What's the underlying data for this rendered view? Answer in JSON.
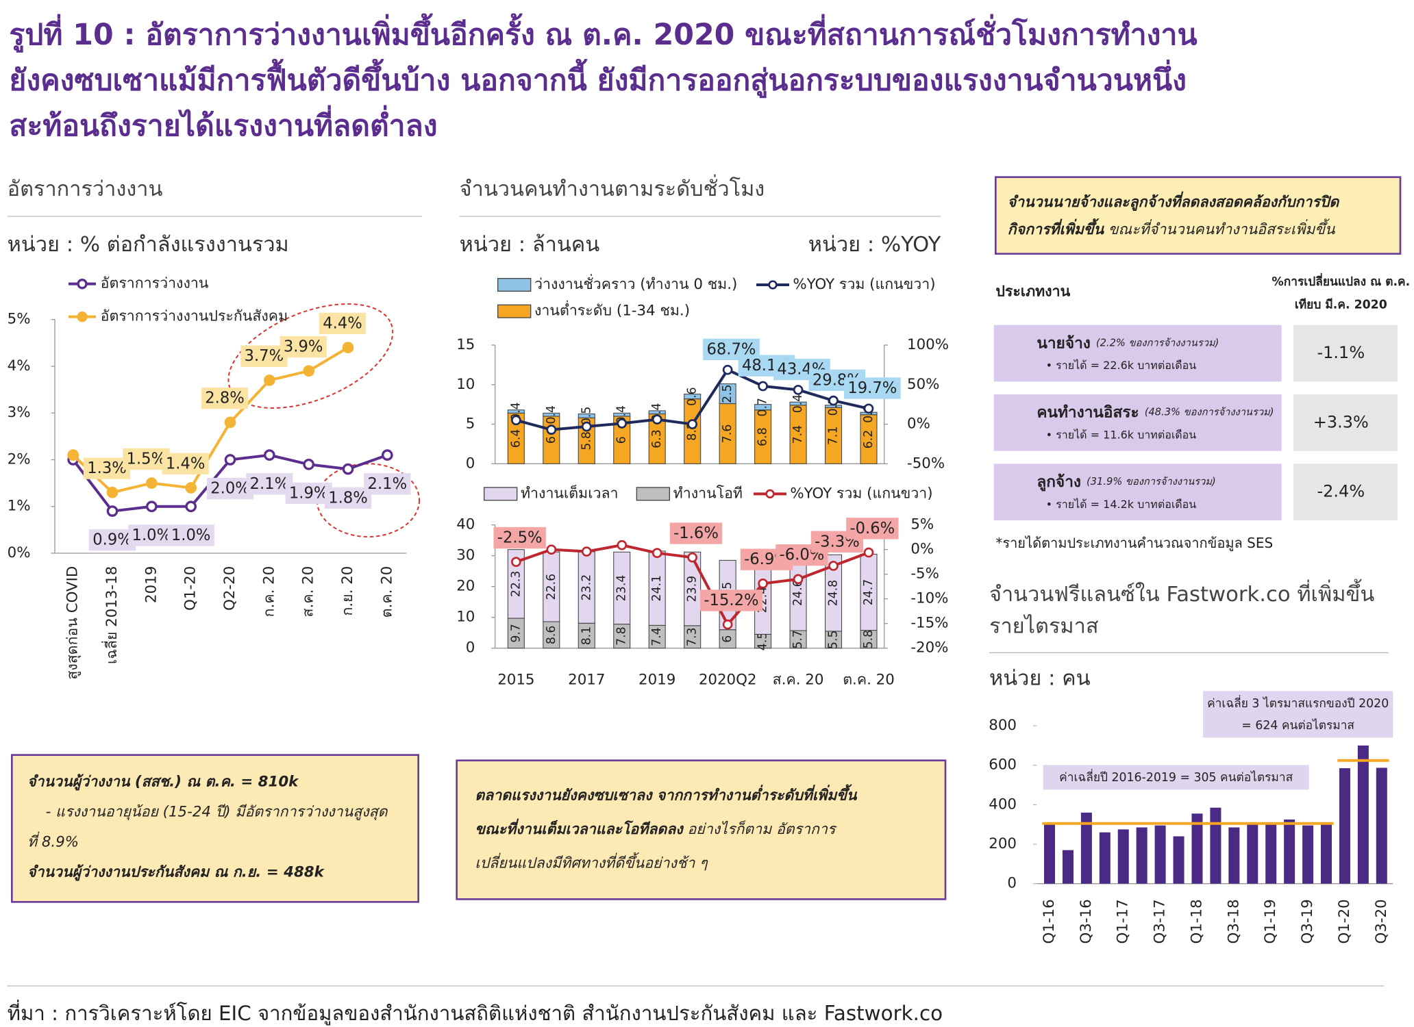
{
  "header": {
    "title_lines": [
      "รูปที่ 10 : อัตราการว่างงานเพิ่มขึ้นอีกครั้ง ณ ต.ค. 2020 ขณะที่สถานการณ์ชั่วโมงการทำงาน",
      "ยังคงซบเซาแม้มีการฟื้นตัวดีขึ้นบ้าง นอกจากนี้ ยังมีการออกสู่นอกระบบของแรงงานจำนวนหนึ่ง",
      "สะท้อนถึงรายได้แรงงานที่ลดต่ำลง"
    ]
  },
  "chart_data": [
    {
      "type": "line",
      "title": "อัตราการว่างงาน",
      "y_label": "หน่วย : % ต่อกำลังแรงงานรวม",
      "categories": [
        "สูงสุดก่อน COVID",
        "เฉลี่ย 2013-18",
        "2019",
        "Q1-20",
        "Q2-20",
        "ก.ค. 20",
        "ส.ค. 20",
        "ก.ย. 20",
        "ต.ค. 20"
      ],
      "series": [
        {
          "name": "อัตราการว่างงาน",
          "color": "#5b2d8e",
          "values": [
            2.0,
            0.9,
            1.0,
            1.0,
            2.0,
            2.1,
            1.9,
            1.8,
            2.1
          ],
          "value_labels": [
            null,
            "0.9%",
            "1.0%",
            "1.0%",
            "2.0%",
            "2.1%",
            "1.9%",
            "1.8%",
            "2.1%"
          ]
        },
        {
          "name": "อัตราการว่างงานประกันสังคม",
          "color": "#f5b335",
          "values": [
            2.1,
            1.3,
            1.5,
            1.4,
            2.8,
            3.7,
            3.9,
            4.4,
            null
          ],
          "value_labels": [
            null,
            "1.3%",
            "1.5%",
            "1.4%",
            "2.8%",
            "3.7%",
            "3.9%",
            "4.4%",
            null
          ]
        }
      ],
      "ylim": [
        0,
        5
      ],
      "yticks": [
        {
          "value": 0,
          "label": "0%"
        },
        {
          "value": 1,
          "label": "1%"
        },
        {
          "value": 2,
          "label": "2%"
        },
        {
          "value": 3,
          "label": "3%"
        },
        {
          "value": 4,
          "label": "4%"
        },
        {
          "value": 5,
          "label": "5%"
        }
      ]
    },
    {
      "type": "stacked_bar_line",
      "title": "จำนวนคนทำงานตามระดับชั่วโมง",
      "y_label": "หน่วย : ล้านคน",
      "y2_label": "หน่วย : %YOY",
      "series": [
        {
          "name": "งานต่ำระดับ (1-34 ชม.)",
          "color": "#f5a623",
          "values": [
            6.4,
            6.0,
            5.8,
            6.0,
            6.3,
            8.2,
            7.6,
            6.8,
            7.4,
            7.1,
            6.2
          ]
        },
        {
          "name": "ว่างงานชั่วคราว (ทำงาน 0 ชม.)",
          "color": "#8fc3e8",
          "values": [
            0.4,
            0.4,
            0.5,
            0.4,
            0.4,
            0.6,
            2.5,
            0.7,
            0.4,
            0.3,
            0.3
          ]
        },
        {
          "name": "%YOY รวม (แกนขวา)",
          "color": "#1f2a5c",
          "axis": "y2",
          "values": [
            5,
            -7,
            -3,
            1,
            6,
            0,
            68.7,
            48.1,
            43.4,
            29.8,
            19.7
          ],
          "value_labels": [
            null,
            null,
            null,
            null,
            null,
            null,
            "68.7%",
            "48.1%",
            "43.4%",
            "29.8%",
            "19.7%"
          ]
        }
      ],
      "ylim": [
        0,
        15
      ],
      "yticks": [
        0,
        5,
        10,
        15
      ],
      "y2lim": [
        -50,
        100
      ],
      "y2ticks": [
        {
          "value": -50,
          "label": "-50%"
        },
        {
          "value": 0,
          "label": "0%"
        },
        {
          "value": 50,
          "label": "50%"
        },
        {
          "value": 100,
          "label": "100%"
        }
      ]
    },
    {
      "type": "stacked_bar_line",
      "categories": [
        "2015",
        null,
        "2017",
        null,
        "2019",
        null,
        "2020Q2",
        null,
        "ส.ค. 20",
        null,
        "ต.ค. 20"
      ],
      "series": [
        {
          "name": "ทำงานโอที",
          "color": "#bfbfbf",
          "values": [
            9.7,
            8.6,
            8.1,
            7.8,
            7.4,
            7.3,
            6.0,
            4.5,
            5.7,
            5.5,
            5.8
          ]
        },
        {
          "name": "ทำงานเต็มเวลา",
          "color": "#e3d7ef",
          "values": [
            22.3,
            22.6,
            23.2,
            23.4,
            24.1,
            23.9,
            22.5,
            22.4,
            24.6,
            24.8,
            24.7
          ]
        },
        {
          "name": "%YOY รวม (แกนขวา)",
          "color": "#c0262d",
          "axis": "y2",
          "values": [
            -2.5,
            0,
            -0.4,
            0.9,
            -0.7,
            -1.6,
            -15.2,
            -6.9,
            -6.0,
            -3.3,
            -0.6
          ],
          "value_labels": [
            "-2.5%",
            null,
            null,
            null,
            null,
            "-1.6%",
            "-15.2%",
            "-6.9%",
            "-6.0%",
            "-3.3%",
            "-0.6%"
          ]
        }
      ],
      "ylim": [
        0,
        40
      ],
      "yticks": [
        0,
        10,
        20,
        30,
        40
      ],
      "y2lim": [
        -20,
        5
      ],
      "y2ticks": [
        {
          "value": 5,
          "label": "5%"
        },
        {
          "value": 0,
          "label": "0%"
        },
        {
          "value": -5,
          "label": "-5%"
        },
        {
          "value": -10,
          "label": "-10%"
        },
        {
          "value": -15,
          "label": "-15%"
        },
        {
          "value": -20,
          "label": "-20%"
        }
      ]
    },
    {
      "type": "bar",
      "title_lines": [
        "จำนวนฟรีแลนซ์ใน Fastwork.co ที่เพิ่มขึ้น",
        "รายไตรมาส"
      ],
      "y_label": "หน่วย : คน",
      "categories": [
        "Q1-16",
        null,
        "Q3-16",
        null,
        "Q1-17",
        null,
        "Q3-17",
        null,
        "Q1-18",
        null,
        "Q3-18",
        null,
        "Q1-19",
        null,
        "Q3-19",
        null,
        "Q1-20",
        null,
        "Q3-20"
      ],
      "values": [
        300,
        170,
        360,
        260,
        275,
        285,
        295,
        240,
        355,
        385,
        285,
        310,
        305,
        325,
        295,
        310,
        585,
        700,
        587
      ],
      "color": "#4b2a85",
      "ylim": [
        0,
        800
      ],
      "yticks": [
        0,
        200,
        400,
        600,
        800
      ],
      "reference_lines": [
        {
          "value": 305,
          "color": "#f5a623",
          "label_lines": [
            "ค่าเฉลี่ยปี 2016-2019 = 305 คนต่อไตรมาส"
          ]
        },
        {
          "value": 624,
          "color": "#f5a623",
          "label_lines": [
            "ค่าเฉลี่ย 3 ไตรมาสแรกของปี 2020",
            "= 624 คนต่อไตรมาส"
          ]
        }
      ]
    }
  ],
  "highlight_box": {
    "lines": [
      {
        "bold": "จำนวนนายจ้างและลูกจ้างที่ลดลงสอดคล้องกับการปิด"
      },
      {
        "bold": "กิจการที่เพิ่มขึ้น",
        "text": " ขณะที่จำนวนคนทำงานอิสระเพิ่มขึ้น"
      }
    ]
  },
  "employment_table": {
    "header_type": "ประเภทงาน",
    "header_change_lines": [
      "%การเปลี่ยนแปลง ณ ต.ค.",
      "เทียบ มี.ค. 2020"
    ],
    "rows": [
      {
        "name": "นายจ้าง",
        "share": "(2.2% ของการจ้างงานรวม)",
        "income": "• รายได้ = 22.6k บาทต่อเดือน",
        "change": "-1.1%"
      },
      {
        "name": "คนทำงานอิสระ",
        "share": "(48.3% ของการจ้างงานรวม)",
        "income": "• รายได้ = 11.6k บาทต่อเดือน",
        "change": "+3.3%"
      },
      {
        "name": "ลูกจ้าง",
        "share": "(31.9% ของการจ้างงานรวม)",
        "income": "• รายได้ = 14.2k บาทต่อเดือน",
        "change": "-2.4%"
      }
    ],
    "note": "*รายได้ตามประเภทงานคำนวณจากข้อมูล SES"
  },
  "box_unemployed": {
    "lines": [
      {
        "bold": "จำนวนผู้ว่างงาน (สสช.) ณ ต.ค. = 810k"
      },
      {
        "text": "- แรงงานอายุน้อย (15-24 ปี) มีอัตราการว่างงานสูงสุด"
      },
      {
        "text": "ที่ 8.9%"
      },
      {
        "bold": "จำนวนผู้ว่างงานประกันสังคม ณ ก.ย. = 488k"
      }
    ]
  },
  "box_market": {
    "lines": [
      {
        "bold": "ตลาดแรงงานยังคงซบเซาลง จากการทำงานต่ำระดับที่เพิ่มขึ้น"
      },
      {
        "bold": "ขณะที่งานเต็มเวลาและโอทีลดลง",
        "text": " อย่างไรก็ตาม อัตราการ"
      },
      {
        "text": "เปลี่ยนแปลงมีทิศทางที่ดีขึ้นอย่างช้า ๆ"
      }
    ]
  },
  "source": "ที่มา : การวิเคราะห์โดย EIC จากข้อมูลของสำนักงานสถิติแห่งชาติ สำนักงานประกันสังคม และ Fastwork.co"
}
